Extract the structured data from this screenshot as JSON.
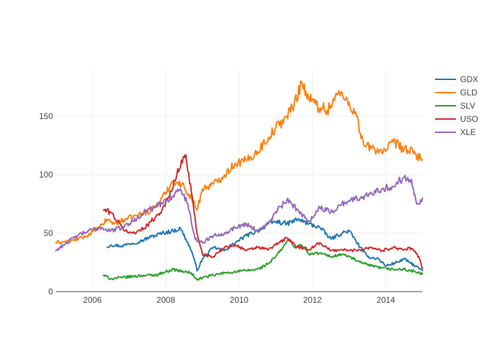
{
  "chart_data": {
    "type": "line",
    "title": "",
    "xlabel": "",
    "ylabel": "",
    "xlim": [
      2005.0,
      2015.0
    ],
    "ylim": [
      0,
      190
    ],
    "x_ticks": [
      2006,
      2008,
      2010,
      2012,
      2014
    ],
    "x_tick_labels": [
      "2006",
      "2008",
      "2010",
      "2012",
      "2014"
    ],
    "y_ticks": [
      0,
      50,
      100,
      150
    ],
    "y_tick_labels": [
      "0",
      "50",
      "100",
      "150"
    ],
    "grid": true,
    "legend_position": "right",
    "series": [
      {
        "name": "GDX",
        "color": "#1f77b4",
        "x": [
          2006.4,
          2006.5,
          2006.8,
          2007.0,
          2007.3,
          2007.6,
          2007.9,
          2008.2,
          2008.4,
          2008.55,
          2008.7,
          2008.8,
          2008.85,
          2009.0,
          2009.3,
          2009.6,
          2009.9,
          2010.2,
          2010.5,
          2010.8,
          2011.0,
          2011.3,
          2011.6,
          2011.9,
          2012.2,
          2012.5,
          2012.8,
          2013.0,
          2013.3,
          2013.5,
          2013.8,
          2014.0,
          2014.3,
          2014.5,
          2014.8,
          2015.0
        ],
        "y": [
          38,
          40,
          39,
          41,
          43,
          47,
          50,
          52,
          54,
          45,
          35,
          25,
          18,
          28,
          38,
          35,
          42,
          48,
          52,
          58,
          60,
          58,
          62,
          58,
          55,
          45,
          50,
          52,
          38,
          30,
          28,
          22,
          25,
          28,
          22,
          18
        ]
      },
      {
        "name": "GLD",
        "color": "#ff7f0e",
        "x": [
          2005.0,
          2005.4,
          2005.8,
          2006.2,
          2006.4,
          2006.6,
          2006.9,
          2007.2,
          2007.5,
          2007.8,
          2008.0,
          2008.2,
          2008.5,
          2008.7,
          2008.85,
          2009.0,
          2009.3,
          2009.6,
          2009.9,
          2010.2,
          2010.5,
          2010.8,
          2011.0,
          2011.3,
          2011.5,
          2011.7,
          2011.9,
          2012.1,
          2012.4,
          2012.7,
          2013.0,
          2013.2,
          2013.4,
          2013.7,
          2014.0,
          2014.2,
          2014.5,
          2014.8,
          2015.0
        ],
        "y": [
          42,
          43,
          47,
          55,
          62,
          58,
          62,
          65,
          68,
          75,
          85,
          95,
          90,
          80,
          70,
          88,
          92,
          100,
          110,
          112,
          120,
          132,
          140,
          150,
          160,
          180,
          165,
          160,
          155,
          170,
          162,
          150,
          125,
          122,
          120,
          128,
          122,
          118,
          113
        ]
      },
      {
        "name": "SLV",
        "color": "#2ca02c",
        "x": [
          2006.3,
          2006.5,
          2006.8,
          2007.1,
          2007.4,
          2007.7,
          2008.0,
          2008.2,
          2008.5,
          2008.7,
          2008.85,
          2009.0,
          2009.3,
          2009.6,
          2009.9,
          2010.2,
          2010.5,
          2010.8,
          2011.0,
          2011.2,
          2011.35,
          2011.5,
          2011.7,
          2011.9,
          2012.2,
          2012.5,
          2012.8,
          2013.0,
          2013.3,
          2013.6,
          2013.9,
          2014.2,
          2014.5,
          2014.8,
          2015.0
        ],
        "y": [
          14,
          11,
          12,
          13,
          14,
          14,
          17,
          19,
          17,
          16,
          10,
          12,
          14,
          16,
          17,
          18,
          19,
          24,
          30,
          38,
          45,
          38,
          40,
          32,
          33,
          30,
          32,
          30,
          25,
          22,
          20,
          19,
          19,
          17,
          15
        ]
      },
      {
        "name": "USO",
        "color": "#d62728",
        "x": [
          2006.3,
          2006.5,
          2006.8,
          2007.0,
          2007.3,
          2007.6,
          2007.9,
          2008.1,
          2008.3,
          2008.5,
          2008.55,
          2008.7,
          2008.85,
          2009.0,
          2009.3,
          2009.6,
          2009.9,
          2010.2,
          2010.5,
          2010.8,
          2011.0,
          2011.3,
          2011.6,
          2011.9,
          2012.2,
          2012.5,
          2012.8,
          2013.0,
          2013.3,
          2013.6,
          2013.9,
          2014.2,
          2014.5,
          2014.7,
          2014.9,
          2015.0
        ],
        "y": [
          70,
          68,
          55,
          50,
          52,
          60,
          70,
          82,
          100,
          115,
          117,
          85,
          50,
          32,
          30,
          38,
          40,
          35,
          38,
          36,
          40,
          46,
          38,
          36,
          42,
          35,
          36,
          35,
          36,
          38,
          35,
          38,
          36,
          37,
          30,
          20
        ]
      },
      {
        "name": "XLE",
        "color": "#9467bd",
        "x": [
          2005.0,
          2005.3,
          2005.6,
          2005.9,
          2006.2,
          2006.5,
          2006.8,
          2007.1,
          2007.4,
          2007.7,
          2008.0,
          2008.2,
          2008.4,
          2008.6,
          2008.8,
          2009.0,
          2009.3,
          2009.6,
          2009.9,
          2010.2,
          2010.5,
          2010.8,
          2011.0,
          2011.3,
          2011.6,
          2011.9,
          2012.2,
          2012.5,
          2012.8,
          2013.0,
          2013.3,
          2013.6,
          2013.9,
          2014.2,
          2014.5,
          2014.7,
          2014.85,
          2015.0
        ],
        "y": [
          35,
          42,
          48,
          52,
          55,
          52,
          55,
          60,
          68,
          72,
          78,
          82,
          88,
          75,
          45,
          42,
          48,
          50,
          55,
          58,
          52,
          58,
          68,
          78,
          70,
          60,
          72,
          68,
          75,
          78,
          80,
          85,
          88,
          90,
          98,
          96,
          75,
          80
        ]
      }
    ]
  }
}
